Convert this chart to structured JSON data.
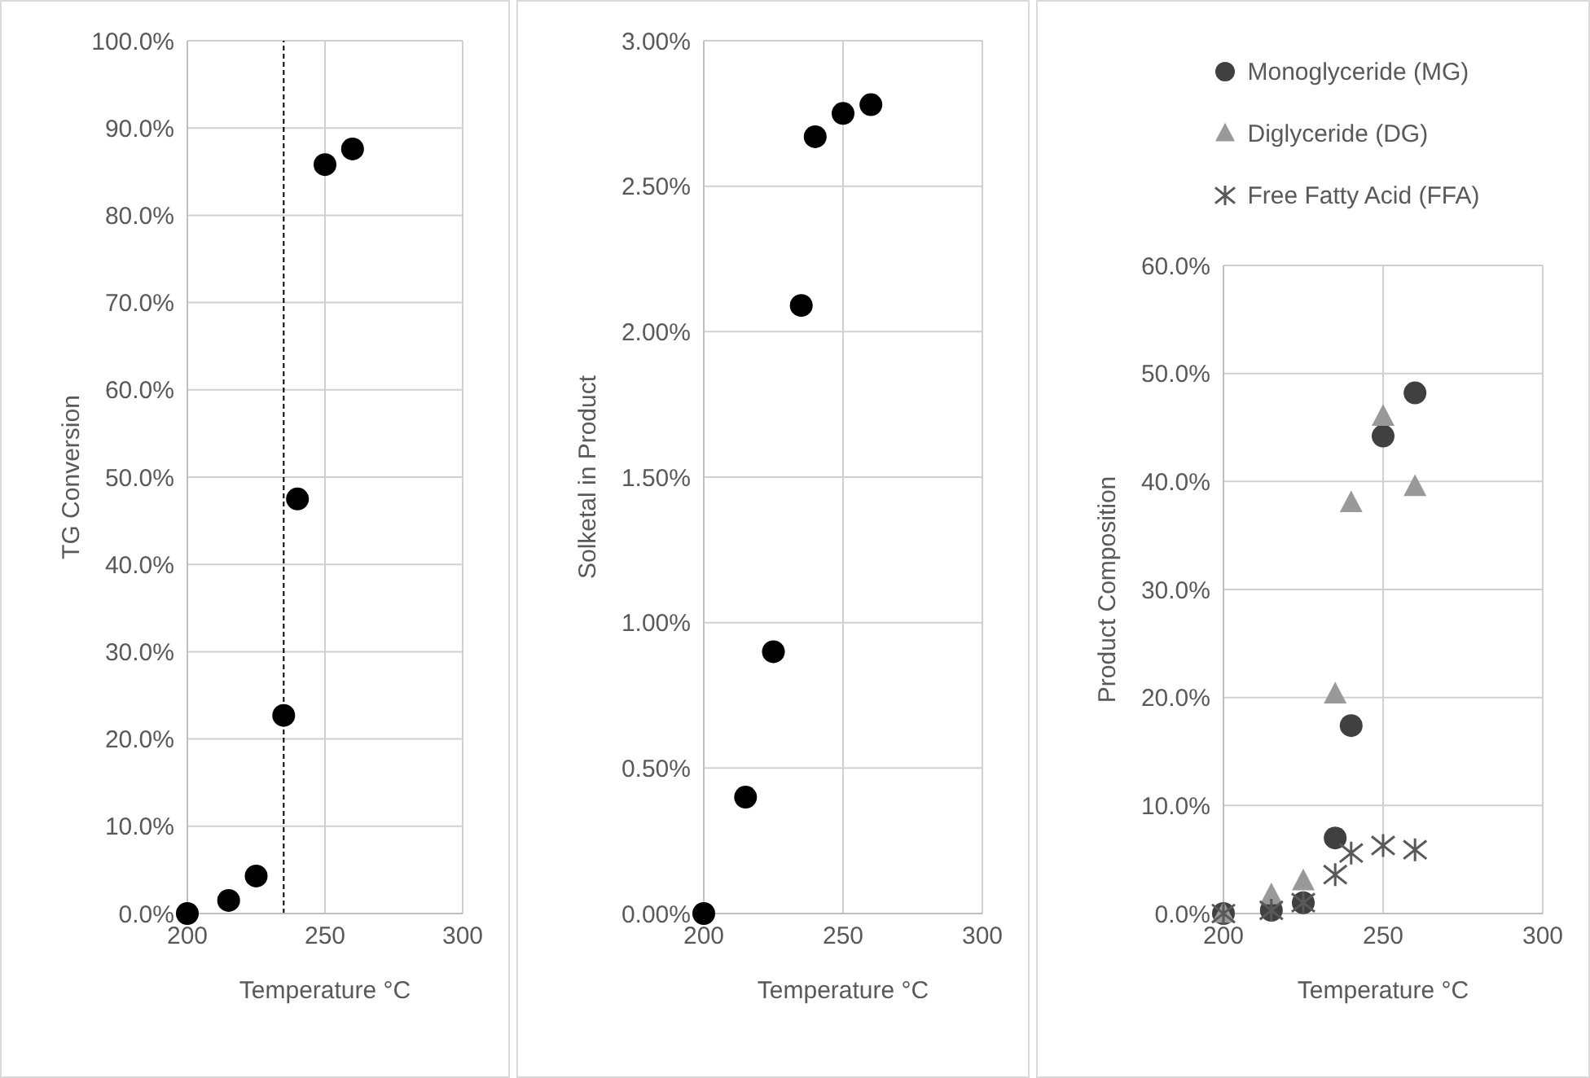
{
  "chart_data": [
    {
      "type": "scatter",
      "xlabel": "Temperature °C",
      "ylabel": "TG Conversion",
      "x": [
        200,
        215,
        225,
        235,
        240,
        250,
        260
      ],
      "values": [
        0,
        1.5,
        4.3,
        22.7,
        47.5,
        85.8,
        87.6
      ],
      "color": "#000000",
      "marker": "circle",
      "xlim": [
        200,
        300
      ],
      "xticks": [
        200,
        250,
        300
      ],
      "ylim": [
        0,
        100
      ],
      "yticks": [
        {
          "value": 0,
          "label": "0.0%"
        },
        {
          "value": 10,
          "label": "10.0%"
        },
        {
          "value": 20,
          "label": "20.0%"
        },
        {
          "value": 30,
          "label": "30.0%"
        },
        {
          "value": 40,
          "label": "40.0%"
        },
        {
          "value": 50,
          "label": "50.0%"
        },
        {
          "value": 60,
          "label": "60.0%"
        },
        {
          "value": 70,
          "label": "70.0%"
        },
        {
          "value": 80,
          "label": "80.0%"
        },
        {
          "value": 90,
          "label": "90.0%"
        },
        {
          "value": 100,
          "label": "100.0%"
        }
      ],
      "grid": true,
      "ref_lines": [
        {
          "axis": "x",
          "value": 235,
          "color": "#000000",
          "line_style": "dashed"
        }
      ]
    },
    {
      "type": "scatter",
      "xlabel": "Temperature °C",
      "ylabel": "Solketal in Product",
      "x": [
        200,
        215,
        225,
        235,
        240,
        250,
        260
      ],
      "values": [
        0,
        0.4,
        0.9,
        2.09,
        2.67,
        2.75,
        2.78
      ],
      "color": "#000000",
      "marker": "circle",
      "xlim": [
        200,
        300
      ],
      "xticks": [
        200,
        250,
        300
      ],
      "ylim": [
        0,
        3
      ],
      "yticks": [
        {
          "value": 0,
          "label": "0.00%"
        },
        {
          "value": 0.5,
          "label": "0.50%"
        },
        {
          "value": 1,
          "label": "1.00%"
        },
        {
          "value": 1.5,
          "label": "1.50%"
        },
        {
          "value": 2,
          "label": "2.00%"
        },
        {
          "value": 2.5,
          "label": "2.50%"
        },
        {
          "value": 3,
          "label": "3.00%"
        }
      ],
      "grid": true
    },
    {
      "type": "scatter",
      "xlabel": "Temperature °C",
      "ylabel": "Product Composition",
      "x": [
        200,
        215,
        225,
        235,
        240,
        250,
        260
      ],
      "series": [
        {
          "name": "Monoglyceride (MG)",
          "color": "#404040",
          "marker": "circle",
          "values": [
            0,
            0.3,
            1.0,
            7.0,
            17.4,
            44.2,
            48.2
          ]
        },
        {
          "name": "Diglyceride (DG)",
          "color": "#999999",
          "marker": "triangle",
          "values": [
            0,
            1.7,
            3.0,
            20.3,
            38.0,
            46.0,
            39.5
          ]
        },
        {
          "name": "Free Fatty Acid (FFA)",
          "color": "#595959",
          "marker": "cross",
          "values": [
            0,
            0.3,
            1.0,
            3.6,
            5.6,
            6.3,
            5.9
          ]
        }
      ],
      "xlim": [
        200,
        300
      ],
      "xticks": [
        200,
        250,
        300
      ],
      "ylim": [
        0,
        60
      ],
      "yticks": [
        {
          "value": 0,
          "label": "0.0%"
        },
        {
          "value": 10,
          "label": "10.0%"
        },
        {
          "value": 20,
          "label": "20.0%"
        },
        {
          "value": 30,
          "label": "30.0%"
        },
        {
          "value": 40,
          "label": "40.0%"
        },
        {
          "value": 50,
          "label": "50.0%"
        },
        {
          "value": 60,
          "label": "60.0%"
        }
      ],
      "grid": true,
      "legend": "top"
    }
  ]
}
